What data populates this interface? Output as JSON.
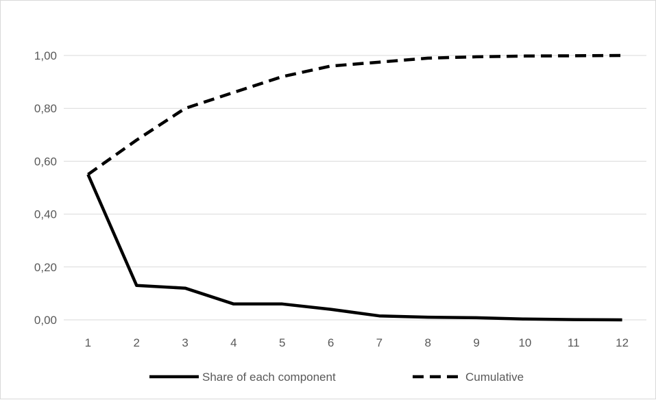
{
  "chart_data": {
    "type": "line",
    "x": [
      1,
      2,
      3,
      4,
      5,
      6,
      7,
      8,
      9,
      10,
      11,
      12
    ],
    "x_tick_labels": [
      "1",
      "2",
      "3",
      "4",
      "5",
      "6",
      "7",
      "8",
      "9",
      "10",
      "11",
      "12"
    ],
    "y_tick_labels": [
      "0,00",
      "0,20",
      "0,40",
      "0,60",
      "0,80",
      "1,00"
    ],
    "y_ticks": [
      0,
      0.2,
      0.4,
      0.6,
      0.8,
      1.0
    ],
    "ylim": [
      0,
      1.1
    ],
    "grid": "horizontal",
    "legend_position": "bottom",
    "series": [
      {
        "name": "Share of each component",
        "line_style": "solid",
        "color": "#000000",
        "values": [
          0.55,
          0.13,
          0.12,
          0.06,
          0.06,
          0.04,
          0.015,
          0.01,
          0.008,
          0.003,
          0.001,
          0.0
        ]
      },
      {
        "name": "Cumulative",
        "line_style": "dashed",
        "color": "#000000",
        "values": [
          0.55,
          0.68,
          0.8,
          0.86,
          0.92,
          0.96,
          0.975,
          0.99,
          0.995,
          0.998,
          0.999,
          1.0
        ]
      }
    ]
  }
}
